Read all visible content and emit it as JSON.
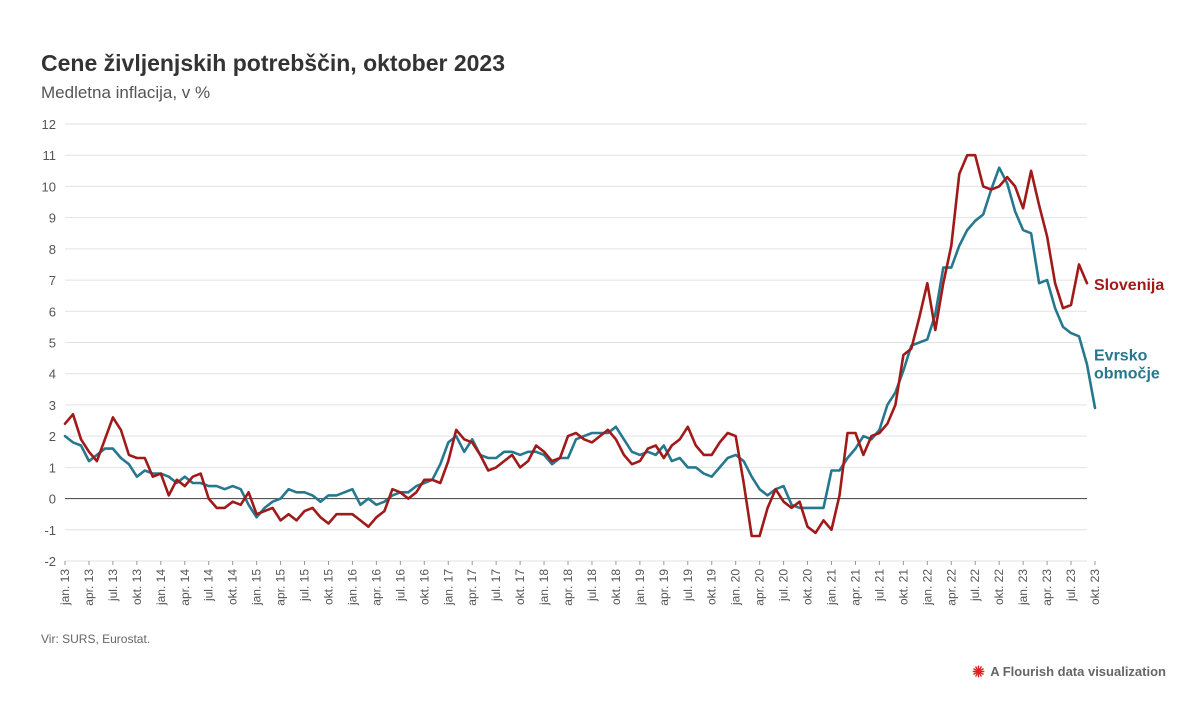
{
  "title": "Cene življenjskih potrebščin, oktober 2023",
  "subtitle": "Medletna inflacija, v %",
  "source": "Vir: SURS, Eurostat.",
  "credit": "A Flourish data visualization",
  "colors": {
    "slovenia": "#a01a1a",
    "euro": "#26788e",
    "grid": "#e2e2e2",
    "zero": "#555555",
    "icon": "#e02020"
  },
  "chart_data": {
    "type": "line",
    "title": "Cene življenjskih potrebščin, oktober 2023",
    "subtitle": "Medletna inflacija, v %",
    "xlabel": "",
    "ylabel": "",
    "ylim": [
      -2,
      12
    ],
    "yticks": [
      -2,
      -1,
      0,
      1,
      2,
      3,
      4,
      5,
      6,
      7,
      8,
      9,
      10,
      11,
      12
    ],
    "grid": true,
    "legend": "direct labels at line ends",
    "x_start": "jan. 13",
    "x_end": "okt. 23",
    "x_ticks": [
      "jan. 13",
      "apr. 13",
      "jul. 13",
      "okt. 13",
      "jan. 14",
      "apr. 14",
      "jul. 14",
      "okt. 14",
      "jan. 15",
      "apr. 15",
      "jul. 15",
      "okt. 15",
      "jan. 16",
      "apr. 16",
      "jul. 16",
      "okt. 16",
      "jan. 17",
      "apr. 17",
      "jul. 17",
      "okt. 17",
      "jan. 18",
      "apr. 18",
      "jul. 18",
      "okt. 18",
      "jan. 19",
      "apr. 19",
      "jul. 19",
      "okt. 19",
      "jan. 20",
      "apr. 20",
      "jul. 20",
      "okt. 20",
      "jan. 21",
      "apr. 21",
      "jul. 21",
      "okt. 21",
      "jan. 22",
      "apr. 22",
      "jul. 22",
      "okt. 22",
      "jan. 23",
      "apr. 23",
      "jul. 23",
      "okt. 23"
    ],
    "series": [
      {
        "name": "Slovenija",
        "color": "#a01a1a",
        "values": [
          2.4,
          2.7,
          1.9,
          1.5,
          1.2,
          1.9,
          2.6,
          2.2,
          1.4,
          1.3,
          1.3,
          0.7,
          0.8,
          0.1,
          0.6,
          0.4,
          0.7,
          0.8,
          0.0,
          -0.3,
          -0.3,
          -0.1,
          -0.2,
          0.2,
          -0.5,
          -0.4,
          -0.3,
          -0.7,
          -0.5,
          -0.7,
          -0.4,
          -0.3,
          -0.6,
          -0.8,
          -0.5,
          -0.5,
          -0.5,
          -0.7,
          -0.9,
          -0.6,
          -0.4,
          0.3,
          0.2,
          0.0,
          0.2,
          0.6,
          0.6,
          0.5,
          1.2,
          2.2,
          1.9,
          1.8,
          1.4,
          0.9,
          1.0,
          1.2,
          1.4,
          1.0,
          1.2,
          1.7,
          1.5,
          1.2,
          1.3,
          2.0,
          2.1,
          1.9,
          1.8,
          2.0,
          2.2,
          1.9,
          1.4,
          1.1,
          1.2,
          1.6,
          1.7,
          1.3,
          1.7,
          1.9,
          2.3,
          1.7,
          1.4,
          1.4,
          1.8,
          2.1,
          2.0,
          0.5,
          -1.2,
          -1.2,
          -0.3,
          0.3,
          -0.1,
          -0.3,
          -0.1,
          -0.9,
          -1.1,
          -0.7,
          -1.0,
          0.1,
          2.1,
          2.1,
          1.4,
          2.0,
          2.1,
          2.4,
          3.0,
          4.6,
          4.8,
          5.8,
          6.9,
          5.4,
          6.9,
          8.1,
          10.4,
          11.0,
          11.0,
          10.0,
          9.9,
          10.0,
          10.3,
          10.0,
          9.3,
          10.5,
          9.4,
          8.4,
          6.9,
          6.1,
          6.2,
          7.5,
          6.9
        ]
      },
      {
        "name": "Evrsko območje",
        "color": "#26788e",
        "values": [
          2.0,
          1.8,
          1.7,
          1.2,
          1.4,
          1.6,
          1.6,
          1.3,
          1.1,
          0.7,
          0.9,
          0.8,
          0.8,
          0.7,
          0.5,
          0.7,
          0.5,
          0.5,
          0.4,
          0.4,
          0.3,
          0.4,
          0.3,
          -0.2,
          -0.6,
          -0.3,
          -0.1,
          0.0,
          0.3,
          0.2,
          0.2,
          0.1,
          -0.1,
          0.1,
          0.1,
          0.2,
          0.3,
          -0.2,
          0.0,
          -0.2,
          -0.1,
          0.1,
          0.2,
          0.2,
          0.4,
          0.5,
          0.6,
          1.1,
          1.8,
          2.0,
          1.5,
          1.9,
          1.4,
          1.3,
          1.3,
          1.5,
          1.5,
          1.4,
          1.5,
          1.5,
          1.4,
          1.1,
          1.3,
          1.3,
          1.9,
          2.0,
          2.1,
          2.1,
          2.1,
          2.3,
          1.9,
          1.5,
          1.4,
          1.5,
          1.4,
          1.7,
          1.2,
          1.3,
          1.0,
          1.0,
          0.8,
          0.7,
          1.0,
          1.3,
          1.4,
          1.2,
          0.7,
          0.3,
          0.1,
          0.3,
          0.4,
          -0.2,
          -0.3,
          -0.3,
          -0.3,
          -0.3,
          0.9,
          0.9,
          1.3,
          1.6,
          2.0,
          1.9,
          2.2,
          3.0,
          3.4,
          4.1,
          4.9,
          5.0,
          5.1,
          5.9,
          7.4,
          7.4,
          8.1,
          8.6,
          8.9,
          9.1,
          9.9,
          10.6,
          10.1,
          9.2,
          8.6,
          8.5,
          6.9,
          7.0,
          6.1,
          5.5,
          5.3,
          5.2,
          4.3,
          2.9
        ]
      }
    ]
  }
}
